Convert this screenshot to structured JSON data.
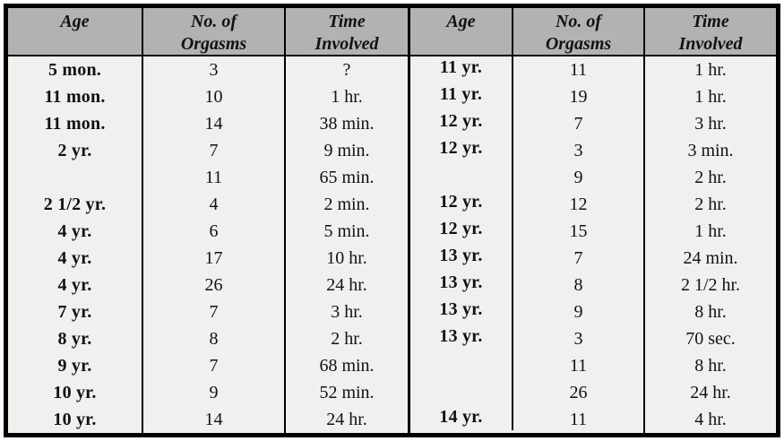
{
  "table": {
    "header": {
      "age_left": "Age",
      "orgasms_left": "No. of\nOrgasms",
      "time_left": "Time\nInvolved",
      "age_right": "Age",
      "orgasms_right": "No. of\nOrgasms",
      "time_right": "Time\nInvolved"
    },
    "rows": [
      {
        "l_age": "5 mon.",
        "l_orgasms": "3",
        "l_time": "?",
        "r_age": "11 yr.",
        "r_orgasms": "11",
        "r_time": "1 hr."
      },
      {
        "l_age": "11 mon.",
        "l_orgasms": "10",
        "l_time": "1 hr.",
        "r_age": "11 yr.",
        "r_orgasms": "19",
        "r_time": "1 hr."
      },
      {
        "l_age": "11 mon.",
        "l_orgasms": "14",
        "l_time": "38 min.",
        "r_age": "12 yr.",
        "r_orgasms": "7",
        "r_time": "3 hr."
      },
      {
        "l_age": "2 yr.",
        "l_orgasms": "7",
        "l_time": "9 min.",
        "r_age": "12 yr.",
        "r_orgasms": "3",
        "r_time": "3 min."
      },
      {
        "l_age": "",
        "l_orgasms": "11",
        "l_time": "65 min.",
        "r_age": "",
        "r_orgasms": "9",
        "r_time": "2 hr."
      },
      {
        "l_age": "2 1/2 yr.",
        "l_orgasms": "4",
        "l_time": "2 min.",
        "r_age": "12 yr.",
        "r_orgasms": "12",
        "r_time": "2 hr."
      },
      {
        "l_age": "4 yr.",
        "l_orgasms": "6",
        "l_time": "5 min.",
        "r_age": "12 yr.",
        "r_orgasms": "15",
        "r_time": "1 hr."
      },
      {
        "l_age": "4 yr.",
        "l_orgasms": "17",
        "l_time": "10 hr.",
        "r_age": "13 yr.",
        "r_orgasms": "7",
        "r_time": "24 min."
      },
      {
        "l_age": "4 yr.",
        "l_orgasms": "26",
        "l_time": "24 hr.",
        "r_age": "13 yr.",
        "r_orgasms": "8",
        "r_time": "2 1/2 hr."
      },
      {
        "l_age": "7 yr.",
        "l_orgasms": "7",
        "l_time": "3 hr.",
        "r_age": "13 yr.",
        "r_orgasms": "9",
        "r_time": "8 hr."
      },
      {
        "l_age": "8 yr.",
        "l_orgasms": "8",
        "l_time": "2 hr.",
        "r_age": "13 yr.",
        "r_orgasms": "3",
        "r_time": "70 sec."
      },
      {
        "l_age": "9 yr.",
        "l_orgasms": "7",
        "l_time": "68 min.",
        "r_age": "",
        "r_orgasms": "11",
        "r_time": "8 hr."
      },
      {
        "l_age": "10 yr.",
        "l_orgasms": "9",
        "l_time": "52 min.",
        "r_age": "",
        "r_orgasms": "26",
        "r_time": "24 hr."
      },
      {
        "l_age": "10 yr.",
        "l_orgasms": "14",
        "l_time": "24 hr.",
        "r_age": "14 yr.",
        "r_orgasms": "11",
        "r_time": "4 hr."
      }
    ],
    "colors": {
      "header_bg": "#b2b2b2",
      "body_bg": "#f0f0ee",
      "border": "#000000",
      "page_bg": "#ffffff"
    }
  }
}
